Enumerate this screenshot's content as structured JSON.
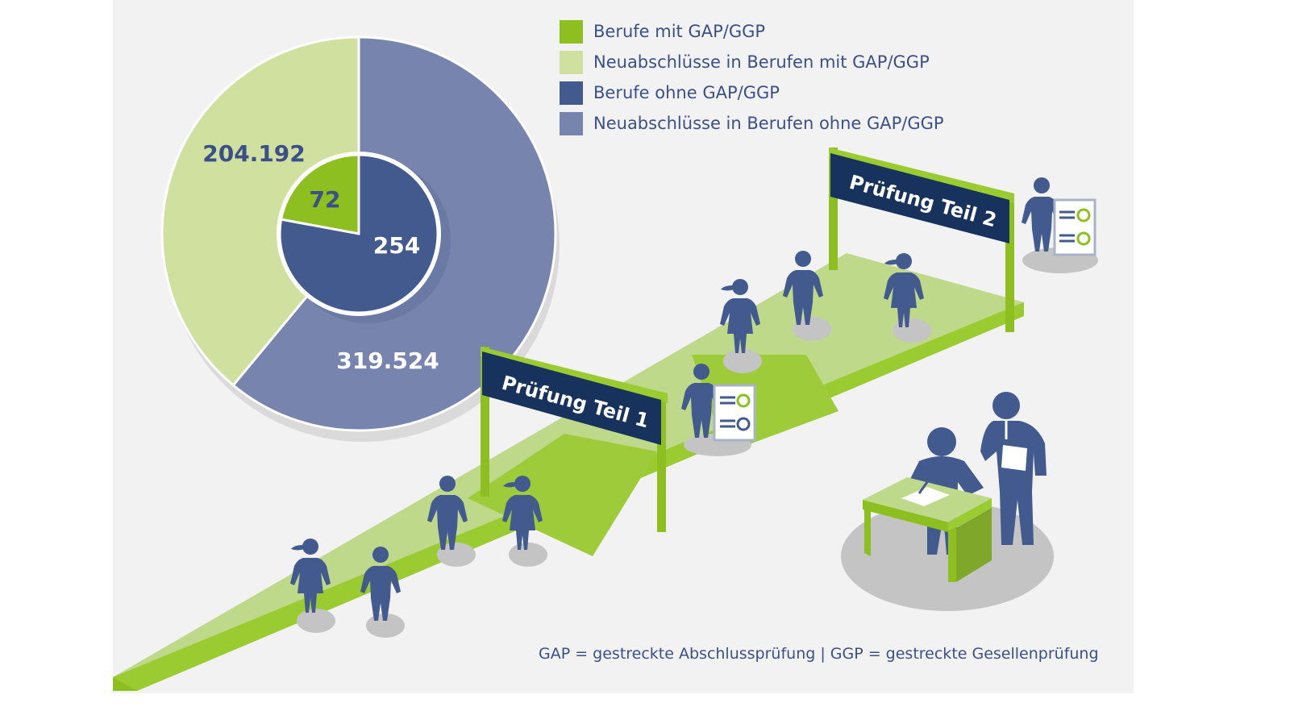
{
  "chart_data": {
    "type": "pie",
    "inner_ring": [
      {
        "name": "Berufe mit GAP/GGP",
        "value": 72,
        "color": "#8cbf1f"
      },
      {
        "name": "Berufe ohne GAP/GGP",
        "value": 254,
        "color": "#435a8f"
      }
    ],
    "outer_ring": [
      {
        "name": "Neuabschlüsse in Berufen mit GAP/GGP",
        "value": 204192,
        "label": "204.192",
        "color": "#cfe09f"
      },
      {
        "name": "Neuabschlüsse in Berufen ohne GAP/GGP",
        "value": 319524,
        "label": "319.524",
        "color": "#7784ae"
      }
    ],
    "inner_labels": [
      "72",
      "254"
    ],
    "legend": [
      {
        "label": "Berufe mit GAP/GGP",
        "color": "#8cbf1f"
      },
      {
        "label": "Neuabschlüsse in Berufen mit GAP/GGP",
        "color": "#cfe09f"
      },
      {
        "label": "Berufe ohne GAP/GGP",
        "color": "#435a8f"
      },
      {
        "label": "Neuabschlüsse in Berufen ohne GAP/GGP",
        "color": "#7784ae"
      }
    ]
  },
  "signs": {
    "teil1": "Prüfung Teil 1",
    "teil2": "Prüfung Teil 2"
  },
  "footnote": "GAP = gestreckte Abschlussprüfung | GGP = gestreckte Gesellenprüfung"
}
